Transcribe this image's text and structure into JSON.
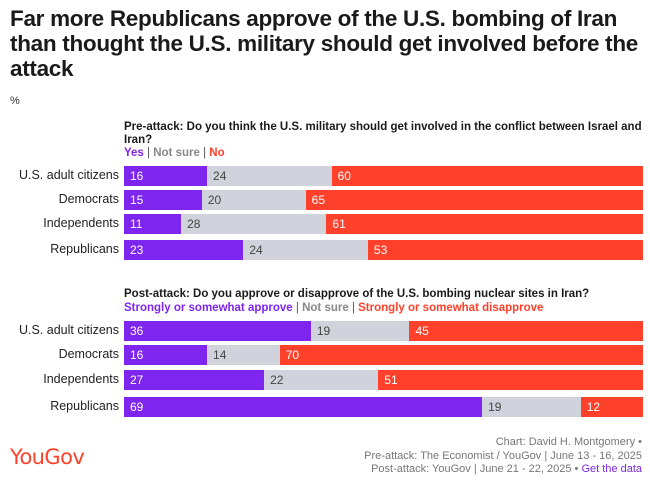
{
  "title": "Far more Republicans approve of the U.S. bombing of Iran than thought the U.S. military should get involved before the attack",
  "unit_label": "%",
  "colors": {
    "yes": "#7f25f0",
    "neutral": "#d1d3dc",
    "no": "#ff412c"
  },
  "chart_data": [
    {
      "type": "bar",
      "orientation": "horizontal",
      "stacked": true,
      "title": "Pre-attack: Do you think the U.S. military should get involved in the conflict between Israel and Iran?",
      "legend": [
        "Yes",
        "Not sure",
        "No"
      ],
      "categories": [
        "U.S. adult citizens",
        "Democrats",
        "Independents",
        "Republicans"
      ],
      "series": [
        {
          "name": "Yes",
          "values": [
            16,
            15,
            11,
            23
          ]
        },
        {
          "name": "Not sure",
          "values": [
            24,
            20,
            28,
            24
          ]
        },
        {
          "name": "No",
          "values": [
            60,
            65,
            61,
            53
          ]
        }
      ]
    },
    {
      "type": "bar",
      "orientation": "horizontal",
      "stacked": true,
      "title": "Post-attack: Do you approve or disapprove of the U.S. bombing nuclear sites in Iran?",
      "legend": [
        "Strongly or somewhat approve",
        "Not sure",
        "Strongly or somewhat disapprove"
      ],
      "categories": [
        "U.S. adult citizens",
        "Democrats",
        "Independents",
        "Republicans"
      ],
      "series": [
        {
          "name": "Strongly or somewhat approve",
          "values": [
            36,
            16,
            27,
            69
          ]
        },
        {
          "name": "Not sure",
          "values": [
            19,
            14,
            22,
            19
          ]
        },
        {
          "name": "Strongly or somewhat disapprove",
          "values": [
            45,
            70,
            51,
            12
          ]
        }
      ]
    }
  ],
  "footer": {
    "logo": "YouGov",
    "credit_line1": "Chart: David H. Montgomery •",
    "credit_line2": "Pre-attack: The Economist / YouGov | June 13 - 16, 2025",
    "credit_line3": "Post-attack: YouGov | June 21 - 22, 2025 •",
    "link_text": "Get the data"
  }
}
